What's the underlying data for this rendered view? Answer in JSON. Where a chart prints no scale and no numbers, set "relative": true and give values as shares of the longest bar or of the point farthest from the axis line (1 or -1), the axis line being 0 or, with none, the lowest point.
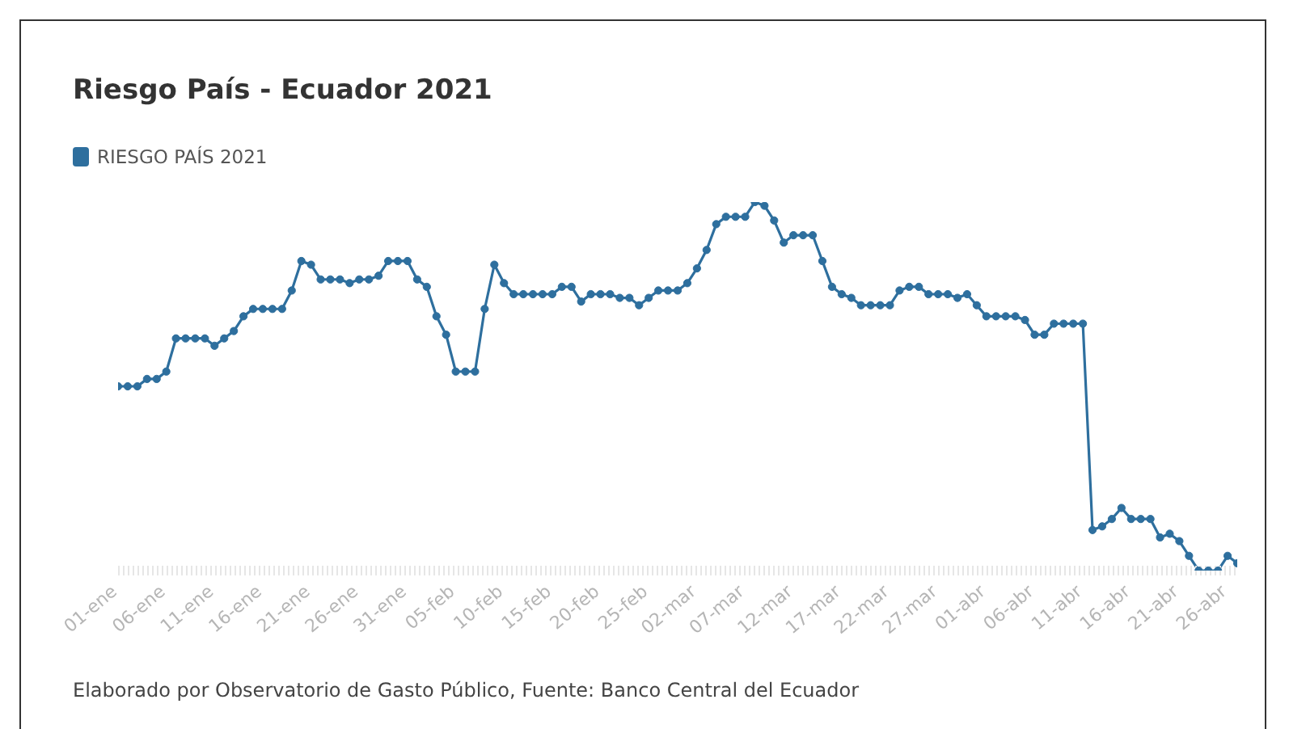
{
  "chart_data": {
    "type": "line",
    "title": "Riesgo País - Ecuador 2021",
    "relative": true,
    "legend": "top left",
    "marker": "circle",
    "line_style": "solid",
    "grid": false,
    "x": [
      "--01-01",
      "--01-02",
      "--01-03",
      "--01-04",
      "--01-05",
      "--01-06",
      "--01-07",
      "--01-08",
      "--01-09",
      "--01-10",
      "--01-11",
      "--01-12",
      "--01-13",
      "--01-14",
      "--01-15",
      "--01-16",
      "--01-17",
      "--01-18",
      "--01-19",
      "--01-20",
      "--01-21",
      "--01-22",
      "--01-23",
      "--01-24",
      "--01-25",
      "--01-26",
      "--01-27",
      "--01-28",
      "--01-29",
      "--01-30",
      "--01-31",
      "--02-01",
      "--02-02",
      "--02-03",
      "--02-04",
      "--02-05",
      "--02-06",
      "--02-07",
      "--02-08",
      "--02-09",
      "--02-10",
      "--02-11",
      "--02-12",
      "--02-13",
      "--02-14",
      "--02-15",
      "--02-16",
      "--02-17",
      "--02-18",
      "--02-19",
      "--02-20",
      "--02-21",
      "--02-22",
      "--02-23",
      "--02-24",
      "--02-25",
      "--02-26",
      "--02-27",
      "--02-28",
      "--03-01",
      "--03-02",
      "--03-03",
      "--03-04",
      "--03-05",
      "--03-06",
      "--03-07",
      "--03-08",
      "--03-09",
      "--03-10",
      "--03-11",
      "--03-12",
      "--03-13",
      "--03-14",
      "--03-15",
      "--03-16",
      "--03-17",
      "--03-18",
      "--03-19",
      "--03-20",
      "--03-21",
      "--03-22",
      "--03-23",
      "--03-24",
      "--03-25",
      "--03-26",
      "--03-27",
      "--03-28",
      "--03-29",
      "--03-30",
      "--03-31",
      "--04-01",
      "--04-02",
      "--04-03",
      "--04-04",
      "--04-05",
      "--04-06",
      "--04-07",
      "--04-08",
      "--04-09",
      "--04-10",
      "--04-11",
      "--04-12",
      "--04-13",
      "--04-14",
      "--04-15",
      "--04-16",
      "--04-17",
      "--04-18",
      "--04-19",
      "--04-20",
      "--04-21",
      "--04-22",
      "--04-23",
      "--04-24",
      "--04-25",
      "--04-26",
      "--04-27"
    ],
    "xlim": [
      "--01-01",
      "--04-27"
    ],
    "xticks": [
      {
        "value": "--01-01",
        "label": "01-ene"
      },
      {
        "value": "--01-06",
        "label": "06-ene"
      },
      {
        "value": "--01-11",
        "label": "11-ene"
      },
      {
        "value": "--01-16",
        "label": "16-ene"
      },
      {
        "value": "--01-21",
        "label": "21-ene"
      },
      {
        "value": "--01-26",
        "label": "26-ene"
      },
      {
        "value": "--01-31",
        "label": "31-ene"
      },
      {
        "value": "--02-05",
        "label": "05-feb"
      },
      {
        "value": "--02-10",
        "label": "10-feb"
      },
      {
        "value": "--02-15",
        "label": "15-feb"
      },
      {
        "value": "--02-20",
        "label": "20-feb"
      },
      {
        "value": "--02-25",
        "label": "25-feb"
      },
      {
        "value": "--03-02",
        "label": "02-mar"
      },
      {
        "value": "--03-07",
        "label": "07-mar"
      },
      {
        "value": "--03-12",
        "label": "12-mar"
      },
      {
        "value": "--03-17",
        "label": "17-mar"
      },
      {
        "value": "--03-22",
        "label": "22-mar"
      },
      {
        "value": "--03-27",
        "label": "27-mar"
      },
      {
        "value": "--04-01",
        "label": "01-abr"
      },
      {
        "value": "--04-06",
        "label": "06-abr"
      },
      {
        "value": "--04-11",
        "label": "11-abr"
      },
      {
        "value": "--04-16",
        "label": "16-abr"
      },
      {
        "value": "--04-21",
        "label": "21-abr"
      },
      {
        "value": "--04-26",
        "label": "26-abr"
      }
    ],
    "series": [
      {
        "name": "RIESGO PAÍS 2021",
        "color": "#2e6f9e",
        "values": [
          0.5,
          0.5,
          0.5,
          0.52,
          0.52,
          0.54,
          0.63,
          0.63,
          0.63,
          0.63,
          0.61,
          0.63,
          0.65,
          0.69,
          0.71,
          0.71,
          0.71,
          0.71,
          0.76,
          0.84,
          0.83,
          0.79,
          0.79,
          0.79,
          0.78,
          0.79,
          0.79,
          0.8,
          0.84,
          0.84,
          0.84,
          0.79,
          0.77,
          0.69,
          0.64,
          0.54,
          0.54,
          0.54,
          0.71,
          0.83,
          0.78,
          0.75,
          0.75,
          0.75,
          0.75,
          0.75,
          0.77,
          0.77,
          0.73,
          0.75,
          0.75,
          0.75,
          0.74,
          0.74,
          0.72,
          0.74,
          0.76,
          0.76,
          0.76,
          0.78,
          0.82,
          0.87,
          0.94,
          0.96,
          0.96,
          0.96,
          1,
          0.99,
          0.95,
          0.89,
          0.91,
          0.91,
          0.91,
          0.84,
          0.77,
          0.75,
          0.74,
          0.72,
          0.72,
          0.72,
          0.72,
          0.76,
          0.77,
          0.77,
          0.75,
          0.75,
          0.75,
          0.74,
          0.75,
          0.72,
          0.69,
          0.69,
          0.69,
          0.69,
          0.68,
          0.64,
          0.64,
          0.67,
          0.67,
          0.67,
          0.67,
          0.11,
          0.12,
          0.14,
          0.17,
          0.14,
          0.14,
          0.14,
          0.09,
          0.1,
          0.08,
          0.04,
          0,
          0,
          0,
          0.04,
          0.02
        ]
      }
    ],
    "annotations": [
      "Elaborado por Observatorio de Gasto Público, Fuente: Banco Central del Ecuador"
    ]
  }
}
